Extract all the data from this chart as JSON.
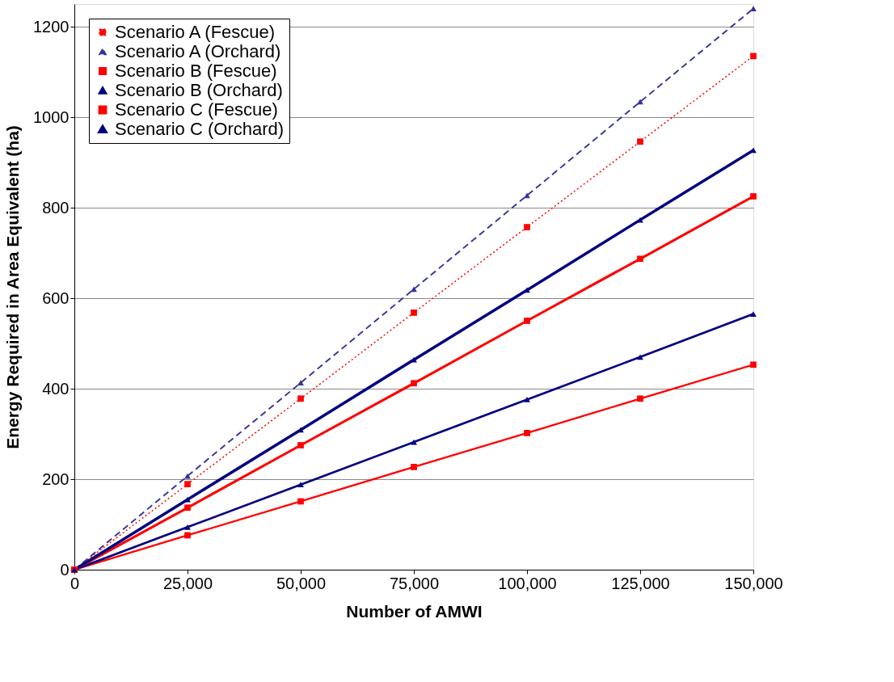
{
  "chart_data": {
    "type": "line",
    "xlabel": "Number of AMWI",
    "ylabel": "Energy Required in Area Equivalent (ha)",
    "x": [
      0,
      25000,
      50000,
      75000,
      100000,
      125000,
      150000
    ],
    "series": [
      {
        "name": "Scenario A (Fescue)",
        "color": "#ff0000",
        "marker": "square",
        "line_style": "dotted",
        "values": [
          0,
          189,
          378,
          568,
          757,
          946,
          1135
        ]
      },
      {
        "name": "Scenario A (Orchard)",
        "color": "#333399",
        "marker": "triangle",
        "line_style": "dashed",
        "values": [
          0,
          207,
          413,
          620,
          827,
          1034,
          1240
        ]
      },
      {
        "name": "Scenario B (Fescue)",
        "color": "#ff0000",
        "marker": "square",
        "line_style": "solid",
        "values": [
          0,
          76,
          151,
          227,
          302,
          378,
          453
        ]
      },
      {
        "name": "Scenario B (Orchard)",
        "color": "#000080",
        "marker": "triangle",
        "line_style": "solid",
        "values": [
          0,
          94,
          188,
          282,
          376,
          470,
          565
        ]
      },
      {
        "name": "Scenario C (Fescue)",
        "color": "#ff0000",
        "marker": "square",
        "line_style": "solid",
        "values": [
          0,
          137,
          275,
          412,
          550,
          687,
          825
        ]
      },
      {
        "name": "Scenario C (Orchard)",
        "color": "#000080",
        "marker": "triangle",
        "line_style": "solid",
        "values": [
          0,
          155,
          309,
          464,
          618,
          773,
          927
        ]
      }
    ],
    "xlim": [
      0,
      150000
    ],
    "xticks": [
      {
        "value": 0,
        "label": "0"
      },
      {
        "value": 25000,
        "label": "25,000"
      },
      {
        "value": 50000,
        "label": "50,000"
      },
      {
        "value": 75000,
        "label": "75,000"
      },
      {
        "value": 100000,
        "label": "100,000"
      },
      {
        "value": 125000,
        "label": "125,000"
      },
      {
        "value": 150000,
        "label": "150,000"
      }
    ],
    "ylim": [
      0,
      1250
    ],
    "yticks": [
      0,
      200,
      400,
      600,
      800,
      1000,
      1200
    ],
    "grid": "y",
    "legend": "top left"
  }
}
